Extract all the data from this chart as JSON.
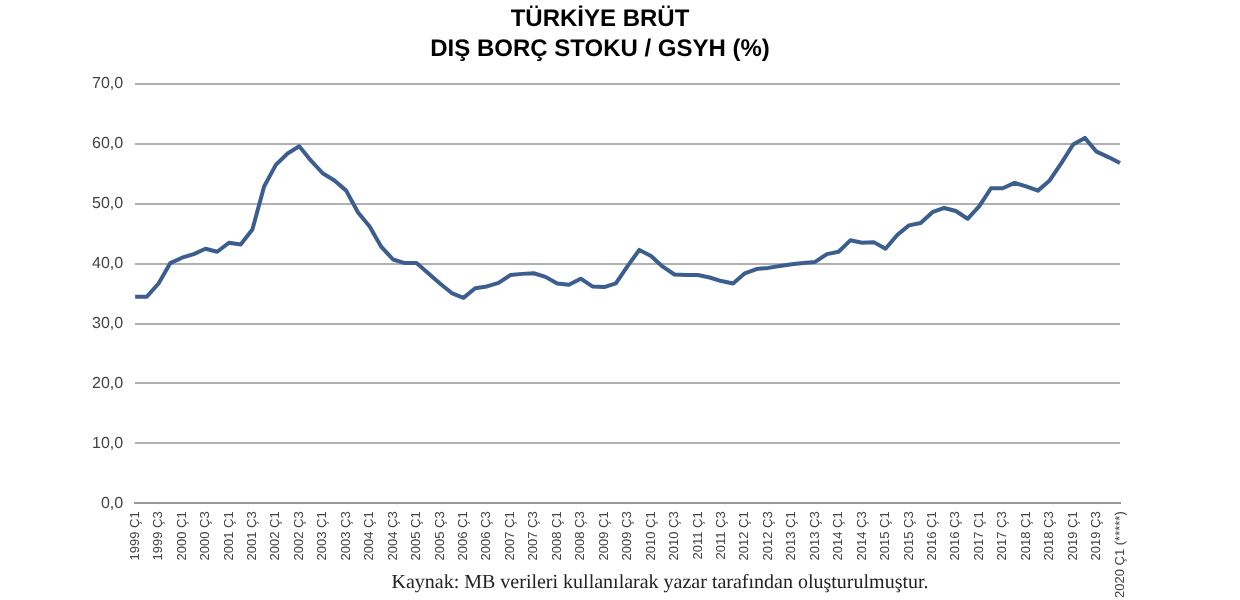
{
  "chart_data": {
    "type": "line",
    "title": "TÜRKİYE BRÜT\nDIŞ BORÇ STOKU / GSYH (%)",
    "categories": [
      "1999 Ç1",
      null,
      "1999 Ç3",
      null,
      "2000 Ç1",
      null,
      "2000 Ç3",
      null,
      "2001 Ç1",
      null,
      "2001 Ç3",
      null,
      "2002 Ç1",
      null,
      "2002 Ç3",
      null,
      "2003 Ç1",
      null,
      "2003 Ç3",
      null,
      "2004 Ç1",
      null,
      "2004 Ç3",
      null,
      "2005 Ç1",
      null,
      "2005 Ç3",
      null,
      "2006 Ç1",
      null,
      "2006 Ç3",
      null,
      "2007 Ç1",
      null,
      "2007 Ç3",
      null,
      "2008 Ç1",
      null,
      "2008 Ç3",
      null,
      "2009 Ç1",
      null,
      "2009 Ç3",
      null,
      "2010 Ç1",
      null,
      "2010 Ç3",
      null,
      "2011 Ç1",
      null,
      "2011 Ç3",
      null,
      "2012 Ç1",
      null,
      "2012 Ç3",
      null,
      "2013 Ç1",
      null,
      "2013 Ç3",
      null,
      "2014 Ç1",
      null,
      "2014 Ç3",
      null,
      "2015 Ç1",
      null,
      "2015 Ç3",
      null,
      "2016 Ç1",
      null,
      "2016 Ç3",
      null,
      "2017 Ç1",
      null,
      "2017 Ç3",
      null,
      "2018 Ç1",
      null,
      "2018 Ç3",
      null,
      "2019 Ç1",
      null,
      "2019 Ç3",
      null,
      "2020 Ç1 (*****)"
    ],
    "series": [
      {
        "color": "#3b5e8f",
        "values": [
          34.5,
          34.5,
          36.7,
          40.1,
          41.0,
          41.6,
          42.5,
          42.0,
          43.5,
          43.2,
          45.7,
          52.9,
          56.5,
          58.4,
          59.6,
          57.2,
          55.1,
          53.9,
          52.2,
          48.6,
          46.2,
          42.8,
          40.7,
          40.1,
          40.1,
          38.4,
          36.7,
          35.1,
          34.3,
          35.9,
          36.2,
          36.8,
          38.1,
          38.3,
          38.4,
          37.8,
          36.7,
          36.5,
          37.5,
          36.2,
          36.1,
          36.7,
          39.6,
          42.3,
          41.3,
          39.5,
          38.2,
          38.1,
          38.1,
          37.7,
          37.1,
          36.7,
          38.4,
          39.1,
          39.3,
          39.6,
          39.9,
          40.1,
          40.3,
          41.6,
          42.0,
          43.9,
          43.5,
          43.6,
          42.5,
          44.8,
          46.4,
          46.8,
          48.6,
          49.3,
          48.8,
          47.5,
          49.6,
          52.6,
          52.6,
          53.5,
          52.9,
          52.2,
          53.9,
          56.8,
          59.9,
          61.0,
          58.7,
          57.8,
          56.8
        ]
      }
    ],
    "ylim": [
      0,
      70
    ],
    "yticks": [
      {
        "value": 0,
        "label": "0,0"
      },
      {
        "value": 10,
        "label": "10,0"
      },
      {
        "value": 20,
        "label": "20,0"
      },
      {
        "value": 30,
        "label": "30,0"
      },
      {
        "value": 40,
        "label": "40,0"
      },
      {
        "value": 50,
        "label": "50,0"
      },
      {
        "value": 60,
        "label": "60,0"
      },
      {
        "value": 70,
        "label": "70,0"
      }
    ],
    "grid": "y",
    "legend": false,
    "marker": "none",
    "line_style": "solid",
    "annotations": [
      "Kaynak: MB verileri kullanılarak yazar tarafından oluşturulmuştur."
    ]
  }
}
